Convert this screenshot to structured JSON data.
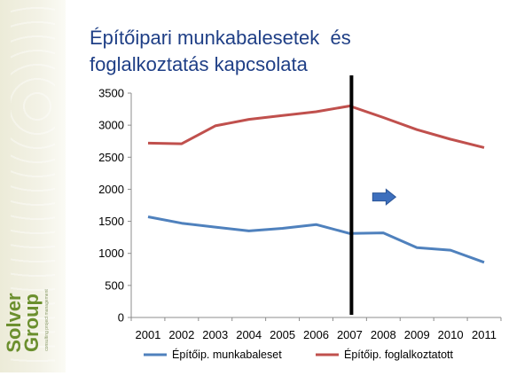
{
  "title": {
    "line1": "Építőipari munkabalesetek  és",
    "line2": "foglalkoztatás kapcsolata"
  },
  "logo": {
    "text": "Solver Group",
    "tagline": "consulting  project  management"
  },
  "chart_data": {
    "type": "line",
    "x": [
      "2001",
      "2002",
      "2003",
      "2004",
      "2005",
      "2006",
      "2007",
      "2008",
      "2009",
      "2010",
      "2011"
    ],
    "series": [
      {
        "name": "Építőip. munkabaleset",
        "color": "#4f81bd",
        "values": [
          1570,
          1470,
          1410,
          1350,
          1390,
          1450,
          1310,
          1320,
          1090,
          1050,
          860
        ]
      },
      {
        "name": "Építőip. foglalkoztatott",
        "color": "#c0504d",
        "values": [
          2720,
          2710,
          2990,
          3090,
          3150,
          3210,
          3300,
          3120,
          2930,
          2780,
          2650
        ]
      }
    ],
    "ylim": [
      0,
      3500
    ],
    "yticks": [
      0,
      500,
      1000,
      1500,
      2000,
      2500,
      3000,
      3500
    ],
    "grid": false,
    "legend": "bottom",
    "annotations": [
      {
        "type": "vertical-line",
        "at": "2007",
        "color": "#000000"
      },
      {
        "type": "arrow-right",
        "near": "2008",
        "value": 1880,
        "color": "#3d6fbd"
      }
    ]
  }
}
